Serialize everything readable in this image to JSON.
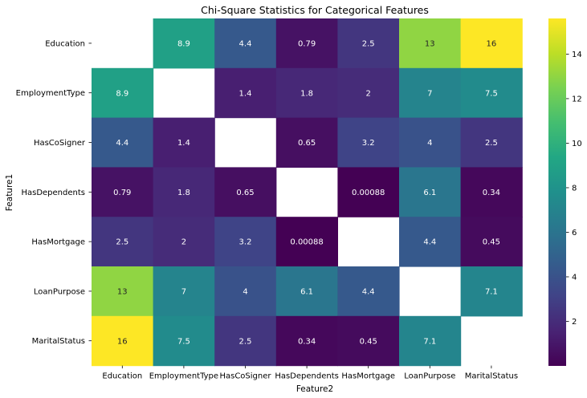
{
  "chart_data": {
    "type": "heatmap",
    "title": "Chi-Square Statistics for Categorical Features",
    "xlabel": "Feature2",
    "ylabel": "Feature1",
    "x_categories": [
      "Education",
      "EmploymentType",
      "HasCoSigner",
      "HasDependents",
      "HasMortgage",
      "LoanPurpose",
      "MaritalStatus"
    ],
    "y_categories": [
      "Education",
      "EmploymentType",
      "HasCoSigner",
      "HasDependents",
      "HasMortgage",
      "LoanPurpose",
      "MaritalStatus"
    ],
    "values": [
      [
        null,
        8.9,
        4.4,
        0.79,
        2.5,
        13,
        16
      ],
      [
        8.9,
        null,
        1.4,
        1.8,
        2,
        7,
        7.5
      ],
      [
        4.4,
        1.4,
        null,
        0.65,
        3.2,
        4,
        2.5
      ],
      [
        0.79,
        1.8,
        0.65,
        null,
        0.00088,
        6.1,
        0.34
      ],
      [
        2.5,
        2,
        3.2,
        0.00088,
        null,
        4.4,
        0.45
      ],
      [
        13,
        7,
        4,
        6.1,
        4.4,
        null,
        7.1
      ],
      [
        16,
        7.5,
        2.5,
        0.34,
        0.45,
        7.1,
        null
      ]
    ],
    "labels": [
      [
        "",
        "8.9",
        "4.4",
        "0.79",
        "2.5",
        "13",
        "16"
      ],
      [
        "8.9",
        "",
        "1.4",
        "1.8",
        "2",
        "7",
        "7.5"
      ],
      [
        "4.4",
        "1.4",
        "",
        "0.65",
        "3.2",
        "4",
        "2.5"
      ],
      [
        "0.79",
        "1.8",
        "0.65",
        "",
        "0.00088",
        "6.1",
        "0.34"
      ],
      [
        "2.5",
        "2",
        "3.2",
        "0.00088",
        "",
        "4.4",
        "0.45"
      ],
      [
        "13",
        "7",
        "4",
        "6.1",
        "4.4",
        "",
        "7.1"
      ],
      [
        "16",
        "7.5",
        "2.5",
        "0.34",
        "0.45",
        "7.1",
        ""
      ]
    ],
    "colormap": "viridis",
    "colorbar": {
      "range": [
        0.00088,
        15.6
      ],
      "ticks": [
        2,
        4,
        6,
        8,
        10,
        12,
        14
      ],
      "tick_labels": [
        "2",
        "4",
        "6",
        "8",
        "10",
        "12",
        "14"
      ]
    },
    "grid": false
  }
}
